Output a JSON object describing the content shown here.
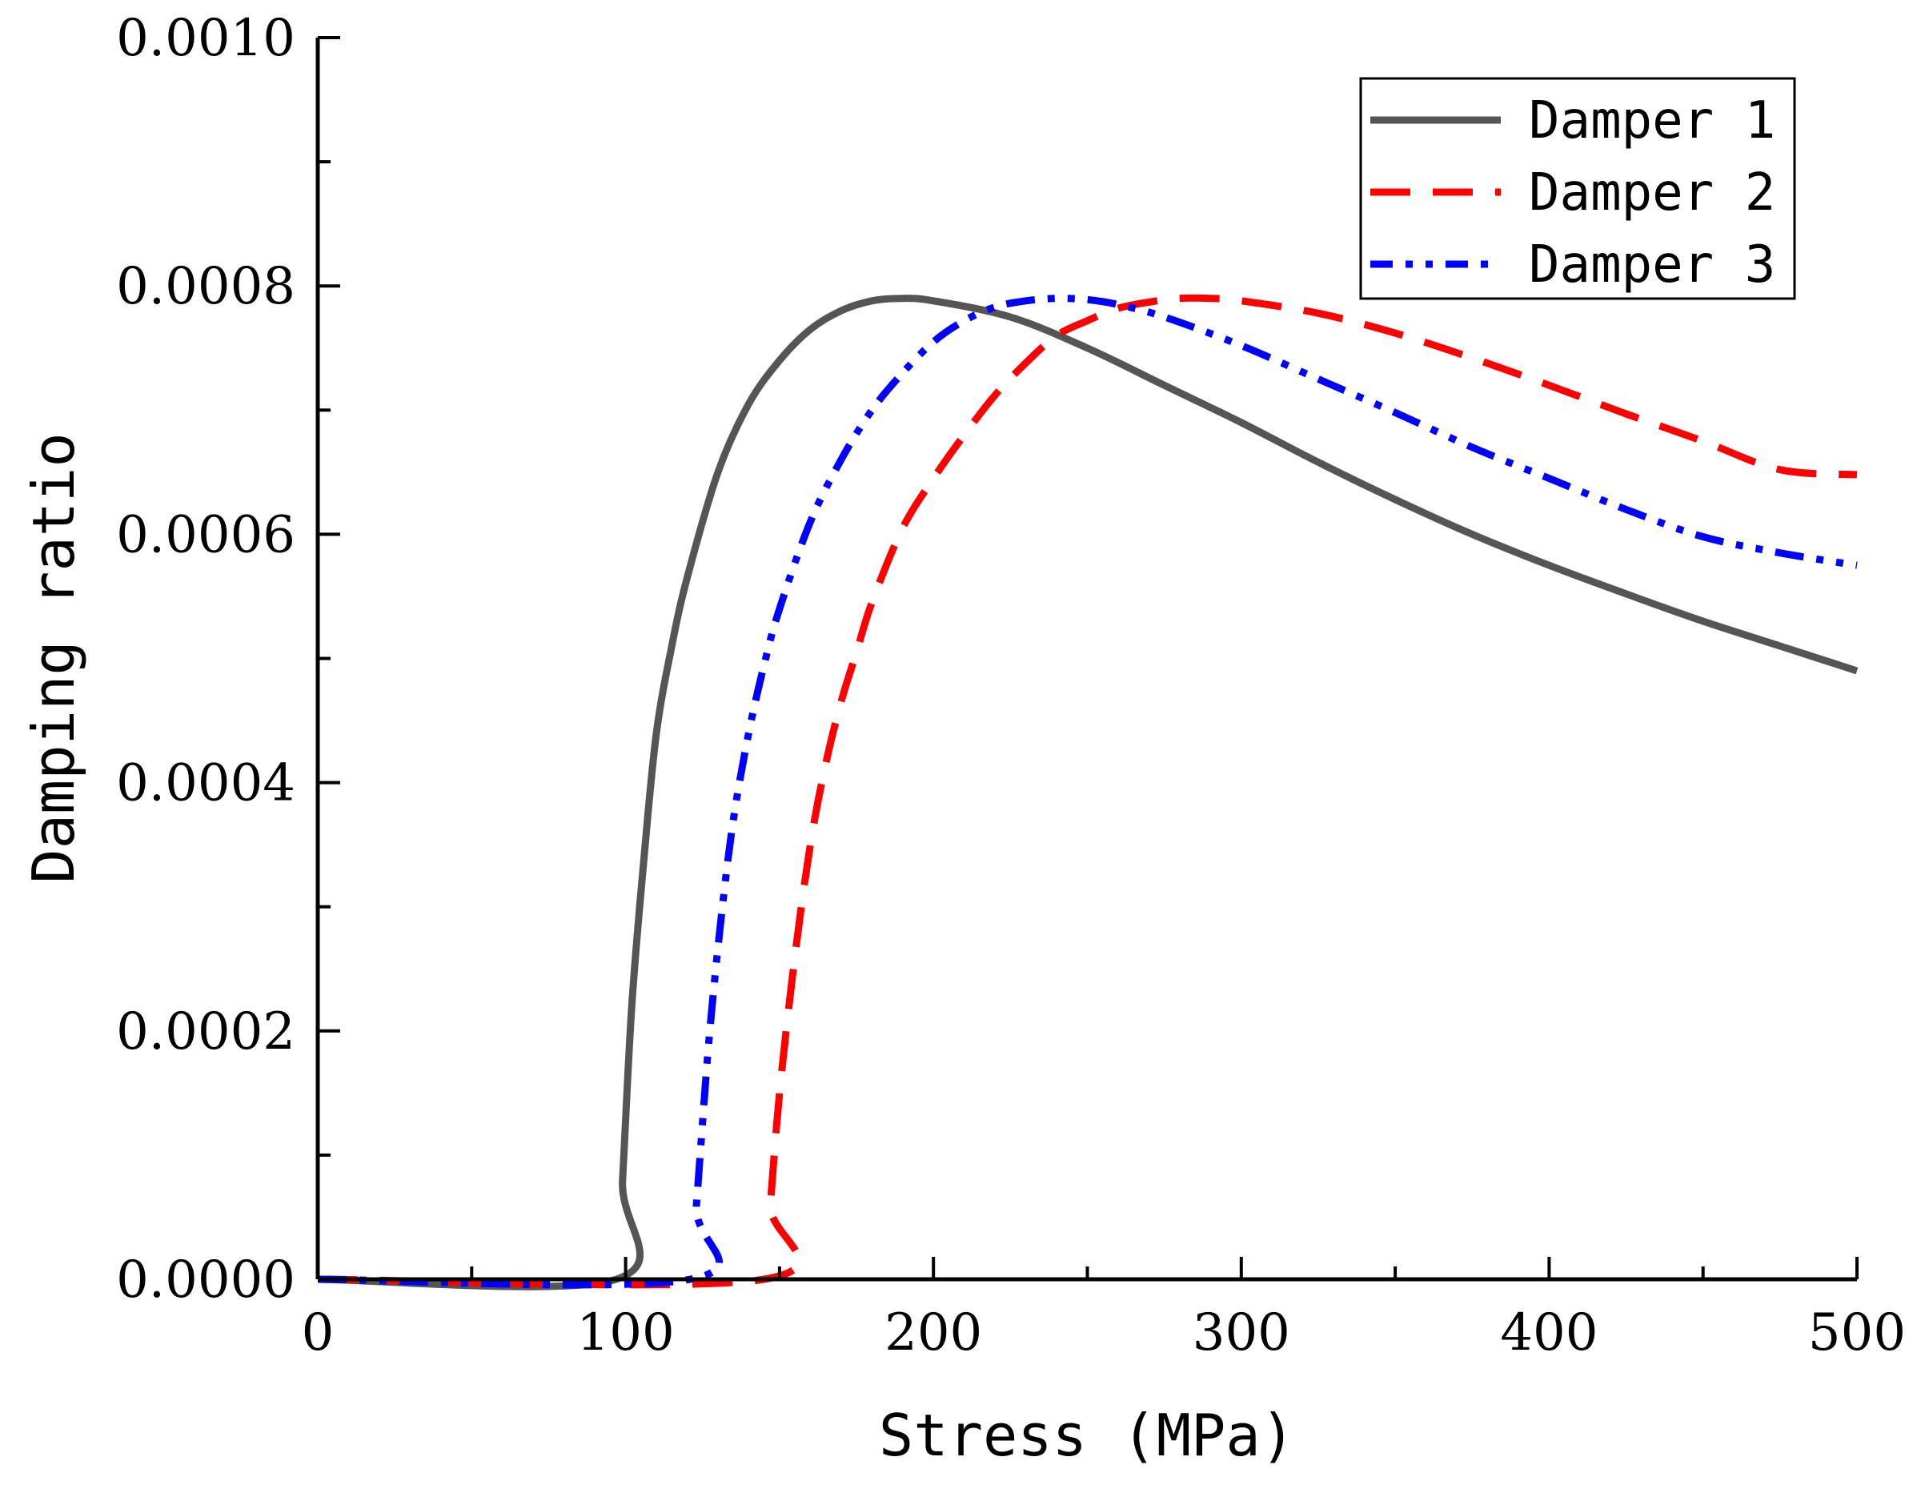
{
  "chart_data": {
    "type": "line",
    "title": "",
    "xlabel": "Stress (MPa)",
    "ylabel": "Damping ratio",
    "xlim": [
      0,
      500
    ],
    "ylim": [
      0,
      0.001
    ],
    "xticks": [
      0,
      100,
      200,
      300,
      400,
      500
    ],
    "xtick_labels": [
      "0",
      "100",
      "200",
      "300",
      "400",
      "500"
    ],
    "yticks": [
      0,
      0.0002,
      0.0004,
      0.0006,
      0.0008,
      0.001
    ],
    "ytick_labels": [
      "0.0000",
      "0.0002",
      "0.0004",
      "0.0006",
      "0.0008",
      "0.0010"
    ],
    "grid": false,
    "legend_position": "top-right",
    "series": [
      {
        "name": "Damper 1",
        "color": "#555555",
        "dash": "solid",
        "x": [
          0,
          97,
          99,
          102,
          106,
          110,
          115,
          120,
          130,
          140,
          150,
          160,
          170,
          180,
          190,
          200,
          225,
          250,
          275,
          300,
          325,
          350,
          375,
          400,
          425,
          450,
          475,
          500
        ],
        "y": [
          0,
          0,
          8e-05,
          0.00022,
          0.00034,
          0.00044,
          0.00051,
          0.000565,
          0.00065,
          0.000705,
          0.00074,
          0.000765,
          0.00078,
          0.000788,
          0.00079,
          0.000788,
          0.000775,
          0.00075,
          0.00072,
          0.00069,
          0.000658,
          0.000628,
          0.0006,
          0.000575,
          0.000552,
          0.00053,
          0.00051,
          0.00049
        ]
      },
      {
        "name": "Damper 2",
        "color": "#ff0000",
        "dash": "long-dash",
        "x": [
          0,
          145,
          147,
          150,
          155,
          160,
          165,
          170,
          175,
          180,
          190,
          200,
          210,
          220,
          230,
          240,
          250,
          260,
          270,
          280,
          290,
          300,
          325,
          350,
          375,
          400,
          425,
          450,
          475,
          500
        ],
        "y": [
          0,
          0,
          6e-05,
          0.00015,
          0.00026,
          0.00035,
          0.000415,
          0.000465,
          0.000505,
          0.000545,
          0.000605,
          0.000645,
          0.00068,
          0.000712,
          0.000738,
          0.00076,
          0.000772,
          0.000782,
          0.000787,
          0.00079,
          0.00079,
          0.000788,
          0.000778,
          0.000762,
          0.000742,
          0.00072,
          0.000697,
          0.000675,
          0.000652,
          0.000648
        ]
      },
      {
        "name": "Damper 3",
        "color": "#0000ff",
        "dash": "dash-dot-dot",
        "x": [
          0,
          121,
          123,
          127,
          131,
          135,
          140,
          145,
          150,
          160,
          170,
          180,
          190,
          200,
          210,
          220,
          230,
          240,
          250,
          260,
          275,
          300,
          325,
          350,
          375,
          400,
          425,
          450,
          475,
          500
        ],
        "y": [
          0,
          0,
          6e-05,
          0.00019,
          0.00029,
          0.00037,
          0.00044,
          0.000495,
          0.00054,
          0.00061,
          0.00066,
          0.0007,
          0.00073,
          0.000755,
          0.000772,
          0.000783,
          0.000788,
          0.00079,
          0.000789,
          0.000785,
          0.000775,
          0.000752,
          0.000725,
          0.000698,
          0.00067,
          0.000645,
          0.00062,
          0.000598,
          0.000585,
          0.000575
        ]
      }
    ]
  }
}
